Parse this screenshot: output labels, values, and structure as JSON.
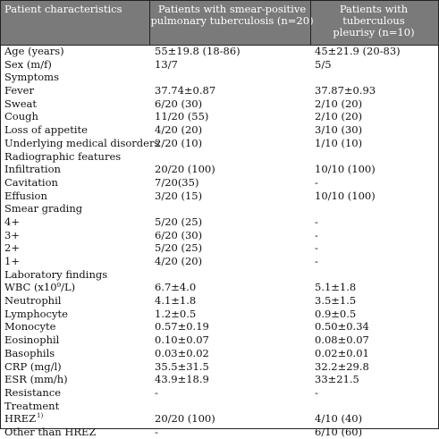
{
  "header": {
    "col1": "Patient characteristics",
    "col2_line1": "Patients with  smear-positive",
    "col2_line2": "pulmonary tuberculosis (n=20)",
    "col3_line1": "Patients with  tuberculous",
    "col3_line2": "pleurisy  (n=10)"
  },
  "rows": [
    {
      "label": "Age (years)",
      "a": "55±19.8 (18-86)",
      "b": "45±21.9 (20-83)"
    },
    {
      "label": "Sex (m/f)",
      "a": "13/7",
      "b": "5/5"
    },
    {
      "label": "Symptoms",
      "a": "",
      "b": ""
    },
    {
      "label": "Fever",
      "a": "37.74±0.87",
      "b": "37.87±0.93"
    },
    {
      "label": "Sweat",
      "a": "6/20 (30)",
      "b": "2/10 (20)"
    },
    {
      "label": "Cough",
      "a": "11/20 (55)",
      "b": "2/10 (20)"
    },
    {
      "label": "Loss of appetite",
      "a": "4/20 (20)",
      "b": "3/10 (30)"
    },
    {
      "label": "Underlying medical disorders",
      "a": "2/20 (10)",
      "b": "1/10 (10)"
    },
    {
      "label": "Radiographic features",
      "a": "",
      "b": ""
    },
    {
      "label": "Infiltration",
      "a": "20/20 (100)",
      "b": "10/10 (100)"
    },
    {
      "label": "Cavitation",
      "a": "7/20(35)",
      "b": "-"
    },
    {
      "label": "Effusion",
      "a": "3/20 (15)",
      "b": "10/10 (100)"
    },
    {
      "label": "Smear grading",
      "a": "",
      "b": ""
    },
    {
      "label": "4+",
      "a": "5/20 (25)",
      "b": "-"
    },
    {
      "label": "3+",
      "a": "6/20 (30)",
      "b": "-"
    },
    {
      "label": "2+",
      "a": "5/20 (25)",
      "b": "-"
    },
    {
      "label": "1+",
      "a": "4/20 (20)",
      "b": "-"
    },
    {
      "label": "Laboratory findings",
      "a": "",
      "b": ""
    },
    {
      "label": "WBC (x10⁹/L)",
      "a": "6.7±4.0",
      "b": "5.1±1.8"
    },
    {
      "label": "Neutrophil",
      "a": "4.1±1.8",
      "b": "3.5±1.5"
    },
    {
      "label": "Lymphocyte",
      "a": "1.2±0.5",
      "b": "0.9±0.5"
    },
    {
      "label": "Monocyte",
      "a": "0.57±0.19",
      "b": "0.50±0.34"
    },
    {
      "label": "Eosinophil",
      "a": "0.10±0.07",
      "b": "0.08±0.07"
    },
    {
      "label": "Basophils",
      "a": "0.03±0.02",
      "b": "0.02±0.01"
    },
    {
      "label": "CRP (mg/l)",
      "a": "35.5±31.5",
      "b": "32.2±29.8"
    },
    {
      "label": "ESR (mm/h)",
      "a": "43.9±18.9",
      "b": "33±21.5"
    },
    {
      "label": "Resistance",
      "a": "-",
      "b": "-"
    },
    {
      "label": "Treatment",
      "a": "",
      "b": ""
    },
    {
      "label": "HREZ",
      "label_sup": "1)",
      "a": "20/20 (100)",
      "b": "4/10 (40)"
    },
    {
      "label": "Other than HREZ",
      "a": "-",
      "b": "6/10 (60)"
    }
  ]
}
